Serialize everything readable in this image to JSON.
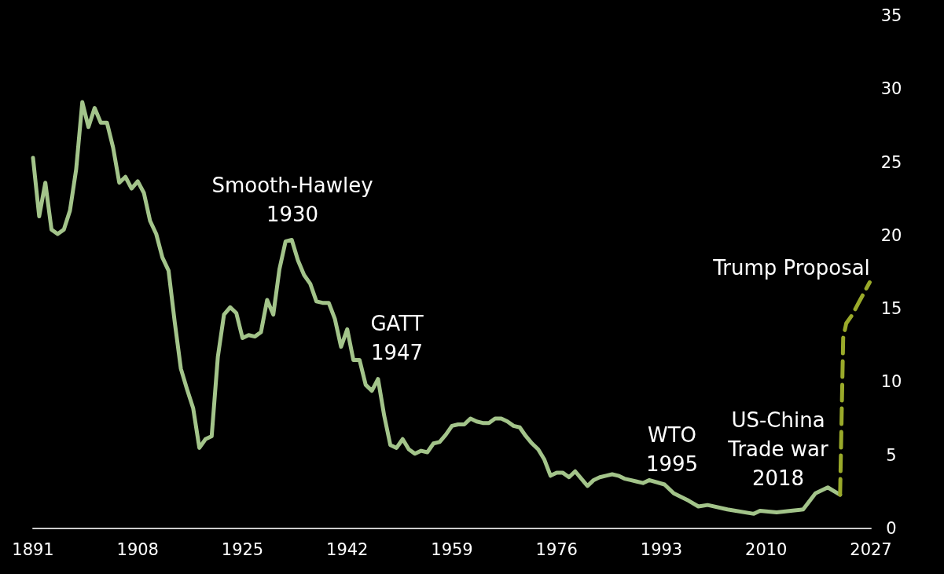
{
  "chart_data": {
    "type": "line",
    "xlim": [
      1891,
      2027
    ],
    "xticks": [
      1891,
      1908,
      1925,
      1942,
      1959,
      1976,
      1993,
      2010,
      2027
    ],
    "ylim": [
      0,
      35
    ],
    "yticks": [
      0,
      5,
      10,
      15,
      20,
      25,
      30,
      35
    ],
    "grid": false,
    "marker": "none",
    "series": [
      {
        "color": "#a3c48a",
        "line_style": "solid",
        "x": [
          1891,
          1892,
          1893,
          1894,
          1895,
          1896,
          1897,
          1898,
          1899,
          1900,
          1901,
          1902,
          1903,
          1904,
          1905,
          1906,
          1907,
          1908,
          1909,
          1910,
          1911,
          1912,
          1913,
          1914,
          1915,
          1916,
          1917,
          1918,
          1919,
          1920,
          1921,
          1922,
          1923,
          1924,
          1925,
          1926,
          1927,
          1928,
          1929,
          1930,
          1931,
          1932,
          1933,
          1934,
          1935,
          1936,
          1937,
          1938,
          1939,
          1940,
          1941,
          1942,
          1943,
          1944,
          1945,
          1946,
          1947,
          1948,
          1949,
          1950,
          1951,
          1952,
          1953,
          1954,
          1955,
          1956,
          1957,
          1958,
          1959,
          1960,
          1961,
          1962,
          1963,
          1964,
          1965,
          1966,
          1967,
          1968,
          1969,
          1970,
          1971,
          1972,
          1973,
          1974,
          1975,
          1976,
          1977,
          1978,
          1979,
          1980,
          1981,
          1982,
          1983,
          1984,
          1985,
          1986,
          1987,
          1988,
          1989,
          1990,
          1991,
          1993.5,
          1995,
          1997.4,
          1999,
          2000.5,
          2003.7,
          2008,
          2009,
          2011.7,
          2014,
          2016,
          2018,
          2020,
          2022
        ],
        "values": [
          25.3,
          21.3,
          23.6,
          20.4,
          20.1,
          20.4,
          21.7,
          24.5,
          29.1,
          27.4,
          28.7,
          27.7,
          27.7,
          26.0,
          23.6,
          24.0,
          23.2,
          23.7,
          22.9,
          21.0,
          20.1,
          18.5,
          17.6,
          14.1,
          10.9,
          9.5,
          8.2,
          5.5,
          6.1,
          6.3,
          11.7,
          14.6,
          15.1,
          14.7,
          13.0,
          13.2,
          13.1,
          13.4,
          15.6,
          14.6,
          17.7,
          19.6,
          19.7,
          18.3,
          17.3,
          16.7,
          15.5,
          15.4,
          15.4,
          14.3,
          12.4,
          13.6,
          11.5,
          11.5,
          9.8,
          9.4,
          10.2,
          7.7,
          5.7,
          5.5,
          6.1,
          5.4,
          5.1,
          5.3,
          5.2,
          5.8,
          5.9,
          6.4,
          7.0,
          7.1,
          7.1,
          7.5,
          7.3,
          7.2,
          7.2,
          7.5,
          7.5,
          7.3,
          7.0,
          6.9,
          6.3,
          5.8,
          5.4,
          4.7,
          3.6,
          3.8,
          3.8,
          3.5,
          3.9,
          3.4,
          2.9,
          3.3,
          3.5,
          3.6,
          3.7,
          3.6,
          3.4,
          3.3,
          3.2,
          3.1,
          3.3,
          3.0,
          2.4,
          1.9,
          1.5,
          1.6,
          1.3,
          1.0,
          1.2,
          1.1,
          1.2,
          1.3,
          2.4,
          2.8,
          2.3
        ]
      },
      {
        "color": "#9aaa2a",
        "line_style": "dashed",
        "x": [
          2022,
          2022.5,
          2023,
          2024,
          2025,
          2026.8
        ],
        "values": [
          2.3,
          13.0,
          14.0,
          14.6,
          15.4,
          16.8
        ]
      }
    ],
    "annotations": [
      "Smooth-Hawley\n1930",
      "GATT\n1947",
      "WTO\n1995",
      "US-China\nTrade war\n2018",
      "Trump Proposal"
    ]
  }
}
